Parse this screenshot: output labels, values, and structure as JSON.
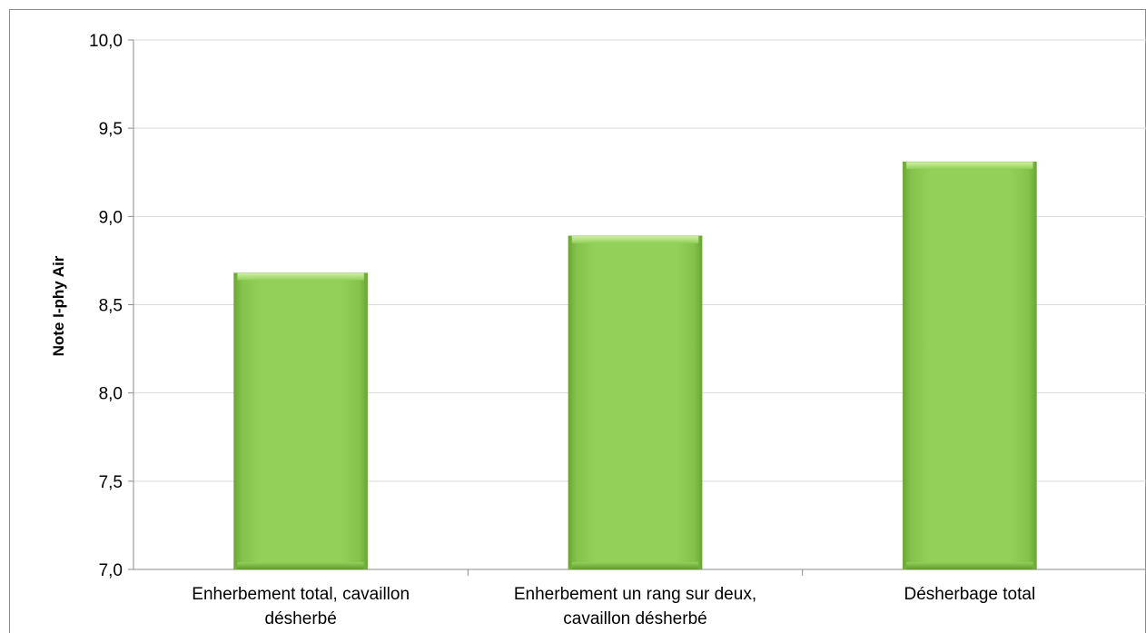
{
  "colors": {
    "bar_main": "#8fce55",
    "bar_light": "#b9e48a",
    "bar_dark": "#5f9a2c",
    "gridline": "#d9d9d9",
    "axis": "#8c8c8c"
  },
  "chart_data": {
    "type": "bar",
    "title": "",
    "xlabel": "",
    "ylabel": "Note I-phy Air",
    "ylim": [
      7.0,
      10.0
    ],
    "yticks": [
      7.0,
      7.5,
      8.0,
      8.5,
      9.0,
      9.5,
      10.0
    ],
    "ytick_labels": [
      "7,0",
      "7,5",
      "8,0",
      "8,5",
      "9,0",
      "9,5",
      "10,0"
    ],
    "grid": true,
    "legend": "none",
    "categories": [
      [
        "Enherbement total, cavaillon",
        "désherbé"
      ],
      [
        "Enherbement un rang sur deux,",
        "cavaillon désherbé"
      ],
      [
        "Désherbage total"
      ]
    ],
    "values": [
      8.68,
      8.89,
      9.31
    ]
  }
}
